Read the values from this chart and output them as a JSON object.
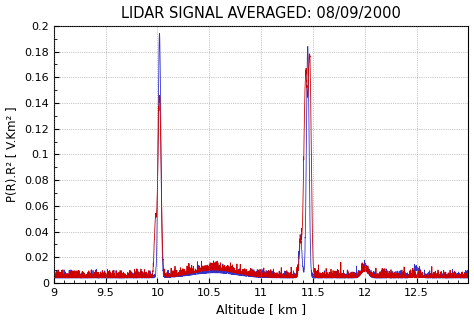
{
  "title": "LIDAR SIGNAL AVERAGED: 08/09/2000",
  "xlabel": "Altitude [ km ]",
  "ylabel": "P(R).R² [ V.Km² ]",
  "xlim": [
    9,
    13
  ],
  "ylim": [
    0,
    0.2
  ],
  "xticks": [
    9,
    9.5,
    10,
    10.5,
    11,
    11.5,
    12,
    12.5
  ],
  "yticks": [
    0,
    0.02,
    0.04,
    0.06,
    0.08,
    0.1,
    0.12,
    0.14,
    0.16,
    0.18,
    0.2
  ],
  "line_color_red": "#cc0000",
  "line_color_blue": "#3333cc",
  "background_color": "#ffffff",
  "grid_color": "#888888",
  "seed": 42,
  "n_points": 3000
}
